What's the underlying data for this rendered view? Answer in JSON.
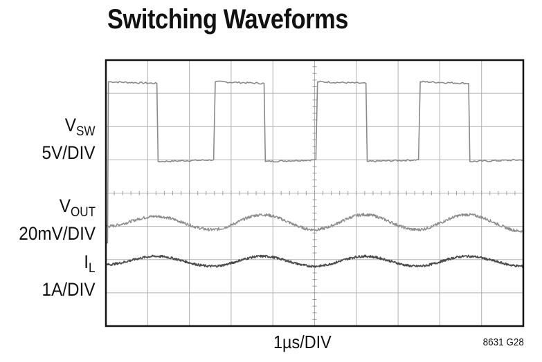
{
  "title": "Switching Waveforms",
  "channels": [
    {
      "name": "V",
      "sub": "SW",
      "scale": "5V/DIV"
    },
    {
      "name": "V",
      "sub": "OUT",
      "scale": "20mV/DIV"
    },
    {
      "name": "I",
      "sub": "L",
      "scale": "1A/DIV"
    }
  ],
  "xlabel": "1µs/DIV",
  "figure_code": "8631 G28",
  "chart_data": {
    "type": "line",
    "title": "Switching Waveforms",
    "xlabel": "1µs/DIV",
    "grid": true,
    "divisions": {
      "x": 10,
      "y": 8
    },
    "x_range_div": [
      0,
      10
    ],
    "y_range_div": [
      0,
      8
    ],
    "series": [
      {
        "name": "VSW",
        "scale": "5V/DIV",
        "color": "#8a8a8a",
        "x": [
          0.0,
          0.04,
          0.06,
          1.22,
          1.25,
          2.58,
          2.62,
          3.79,
          3.82,
          5.03,
          5.07,
          6.23,
          6.26,
          7.49,
          7.53,
          8.69,
          8.72,
          10.0
        ],
        "y": [
          2.5,
          2.5,
          7.35,
          7.3,
          4.95,
          5.0,
          7.35,
          7.3,
          4.95,
          5.0,
          7.35,
          7.3,
          4.95,
          5.0,
          7.35,
          7.3,
          4.95,
          5.0
        ]
      },
      {
        "name": "VOUT",
        "scale": "20mV/DIV",
        "color": "#8a8a8a",
        "x": [
          0.0,
          1.2,
          2.55,
          3.75,
          5.0,
          6.2,
          7.45,
          8.65,
          10.0
        ],
        "y": [
          3.0,
          3.3,
          2.9,
          3.35,
          2.9,
          3.35,
          2.9,
          3.35,
          2.85
        ]
      },
      {
        "name": "IL",
        "scale": "1A/DIV",
        "color": "#4a4a4a",
        "x": [
          0.0,
          1.2,
          2.55,
          3.75,
          5.0,
          6.2,
          7.45,
          8.65,
          10.0
        ],
        "y": [
          1.85,
          2.1,
          1.8,
          2.1,
          1.8,
          2.1,
          1.8,
          2.1,
          1.8
        ]
      }
    ]
  }
}
